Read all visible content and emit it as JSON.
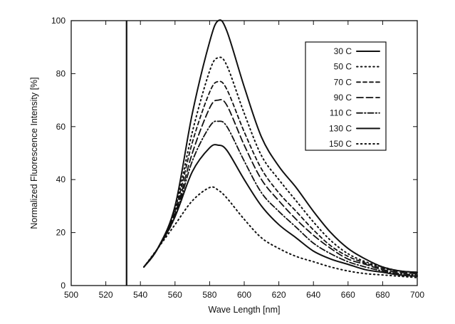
{
  "chart_data": {
    "type": "line",
    "title": "",
    "xlabel": "Wave Length [nm]",
    "ylabel": "Normalized Fluorescence Intensity  [%]",
    "xlim": [
      500,
      700
    ],
    "ylim": [
      0,
      100
    ],
    "xticks": [
      500,
      520,
      540,
      560,
      580,
      600,
      620,
      640,
      660,
      680,
      700
    ],
    "yticks": [
      0,
      20,
      40,
      60,
      80,
      100
    ],
    "grid": false,
    "legend_position": "top-right",
    "reference_line_x": 532,
    "x": [
      542,
      550,
      560,
      570,
      580,
      585,
      590,
      600,
      610,
      620,
      630,
      640,
      650,
      660,
      670,
      680,
      690,
      700
    ],
    "series": [
      {
        "name": "30 C",
        "style": "solid",
        "values": [
          7,
          14,
          30,
          65,
          92,
          100,
          96,
          75,
          56,
          45,
          37,
          28,
          20,
          14,
          10,
          7,
          5.5,
          5
        ]
      },
      {
        "name": "50 C",
        "style": "dotted",
        "values": [
          7,
          14,
          29,
          58,
          81,
          86,
          83,
          65,
          49,
          40,
          32,
          24,
          17,
          12,
          9,
          7,
          5.5,
          5
        ]
      },
      {
        "name": "70 C",
        "style": "dashed",
        "values": [
          7,
          14,
          28,
          54,
          73,
          77,
          74,
          58,
          44,
          35,
          28,
          21,
          15,
          11,
          8.5,
          6.5,
          5.5,
          5
        ]
      },
      {
        "name": "90 C",
        "style": "longdash",
        "values": [
          7,
          14,
          27,
          50,
          67,
          70,
          68,
          53,
          40,
          32,
          25,
          19,
          14,
          10,
          8,
          6,
          5,
          4.5
        ]
      },
      {
        "name": "110 C",
        "style": "dashdot",
        "values": [
          7,
          14,
          26,
          47,
          60,
          62,
          60,
          47,
          35,
          28,
          22,
          16,
          12,
          9,
          7,
          5.5,
          4.5,
          4
        ]
      },
      {
        "name": "130 C",
        "style": "solid",
        "values": [
          7,
          14,
          26,
          43,
          52,
          53,
          51,
          40,
          30,
          23,
          18,
          13,
          10,
          8,
          6,
          5,
          4,
          3.5
        ]
      },
      {
        "name": "150 C",
        "style": "dotted",
        "values": [
          7,
          14,
          23,
          32,
          37,
          36,
          33,
          25,
          18,
          14,
          11,
          9,
          7,
          5.5,
          4.5,
          4,
          3.5,
          3
        ]
      }
    ]
  }
}
